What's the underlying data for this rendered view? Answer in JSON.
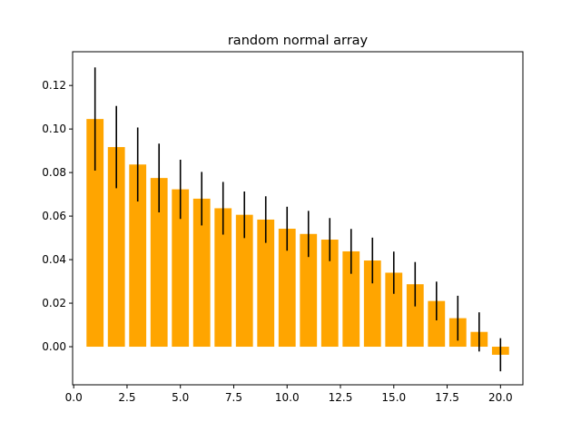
{
  "chart_data": {
    "type": "bar",
    "title": "random normal array",
    "xlabel": "",
    "ylabel": "",
    "xlim": [
      -0.05,
      21.05
    ],
    "ylim": [
      -0.0175,
      0.1355
    ],
    "xticks": [
      0.0,
      2.5,
      5.0,
      7.5,
      10.0,
      12.5,
      15.0,
      17.5,
      20.0
    ],
    "xtick_labels": [
      "0.0",
      "2.5",
      "5.0",
      "7.5",
      "10.0",
      "12.5",
      "15.0",
      "17.5",
      "20.0"
    ],
    "yticks": [
      0.0,
      0.02,
      0.04,
      0.06,
      0.08,
      0.1,
      0.12
    ],
    "ytick_labels": [
      "0.00",
      "0.02",
      "0.04",
      "0.06",
      "0.08",
      "0.10",
      "0.12"
    ],
    "bar_width": 0.8,
    "bar_color": "#ffa500",
    "errorbar_color": "#000000",
    "x": [
      1,
      2,
      3,
      4,
      5,
      6,
      7,
      8,
      9,
      10,
      11,
      12,
      13,
      14,
      15,
      16,
      17,
      18,
      19,
      20
    ],
    "values": [
      0.1046,
      0.0917,
      0.0837,
      0.0775,
      0.0723,
      0.068,
      0.0636,
      0.0606,
      0.0584,
      0.0542,
      0.0518,
      0.0492,
      0.0438,
      0.0396,
      0.034,
      0.0287,
      0.021,
      0.0131,
      0.0068,
      -0.0037
    ],
    "errors": [
      0.0237,
      0.0189,
      0.017,
      0.0158,
      0.0136,
      0.0123,
      0.0121,
      0.0107,
      0.0107,
      0.0101,
      0.0106,
      0.0099,
      0.0103,
      0.0105,
      0.0097,
      0.0102,
      0.0089,
      0.0103,
      0.009,
      0.0076
    ]
  }
}
